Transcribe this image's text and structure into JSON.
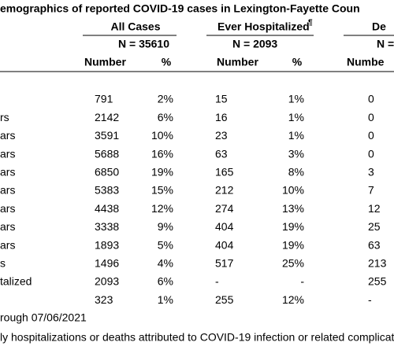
{
  "title": "emographics of reported COVID-19 cases in Lexington-Fayette Coun",
  "table": {
    "group_headers": [
      "All Cases",
      "Ever Hospitalized",
      "De"
    ],
    "hospitalized_mark": "¶",
    "n_labels": [
      "N = 35610",
      "N = 2093",
      "N ="
    ],
    "column_headers": [
      "Number",
      "%",
      "Number",
      "%",
      "Numbe"
    ],
    "rows": [
      {
        "cells": [
          "791",
          "2%",
          "15",
          "1%",
          "0"
        ]
      },
      {
        "label": "rs",
        "cells": [
          "2142",
          "6%",
          "16",
          "1%",
          "0"
        ]
      },
      {
        "label": "ars",
        "cells": [
          "3591",
          "10%",
          "23",
          "1%",
          "0"
        ]
      },
      {
        "label": "ars",
        "cells": [
          "5688",
          "16%",
          "63",
          "3%",
          "0"
        ]
      },
      {
        "label": "ars",
        "cells": [
          "6850",
          "19%",
          "165",
          "8%",
          "3"
        ]
      },
      {
        "label": "ars",
        "cells": [
          "5383",
          "15%",
          "212",
          "10%",
          "7"
        ]
      },
      {
        "label": "ars",
        "cells": [
          "4438",
          "12%",
          "274",
          "13%",
          "12"
        ]
      },
      {
        "label": "ars",
        "cells": [
          "3338",
          "9%",
          "404",
          "19%",
          "25"
        ]
      },
      {
        "label": "ars",
        "cells": [
          "1893",
          "5%",
          "404",
          "19%",
          "63"
        ]
      },
      {
        "label": "s",
        "cells": [
          "1496",
          "4%",
          "517",
          "25%",
          "213"
        ]
      },
      {
        "label": "talized",
        "cells": [
          "2093",
          "6%",
          "-",
          "-",
          "255"
        ]
      },
      {
        "cells": [
          "323",
          "1%",
          "255",
          "12%",
          "-"
        ]
      }
    ]
  },
  "footnotes": [
    "rough 07/06/2021",
    "ly hospitalizations or deaths attributed to COVID-19 infection or related complicat"
  ]
}
